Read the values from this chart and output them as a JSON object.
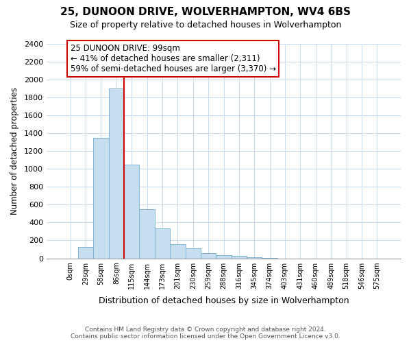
{
  "title": "25, DUNOON DRIVE, WOLVERHAMPTON, WV4 6BS",
  "subtitle": "Size of property relative to detached houses in Wolverhampton",
  "xlabel": "Distribution of detached houses by size in Wolverhampton",
  "ylabel": "Number of detached properties",
  "bin_labels": [
    "0sqm",
    "29sqm",
    "58sqm",
    "86sqm",
    "115sqm",
    "144sqm",
    "173sqm",
    "201sqm",
    "230sqm",
    "259sqm",
    "288sqm",
    "316sqm",
    "345sqm",
    "374sqm",
    "403sqm",
    "431sqm",
    "460sqm",
    "489sqm",
    "518sqm",
    "546sqm",
    "575sqm"
  ],
  "bar_values": [
    0,
    125,
    1345,
    1900,
    1050,
    550,
    335,
    155,
    110,
    60,
    35,
    25,
    10,
    5,
    0,
    0,
    0,
    0,
    0,
    0,
    0
  ],
  "bar_color": "#c5dff0",
  "bar_edge_color": "#7fb3d3",
  "annotation_title": "25 DUNOON DRIVE: 99sqm",
  "annotation_line1": "← 41% of detached houses are smaller (2,311)",
  "annotation_line2": "59% of semi-detached houses are larger (3,370) →",
  "annotation_box_edge": "#cc0000",
  "footer_line1": "Contains HM Land Registry data © Crown copyright and database right 2024.",
  "footer_line2": "Contains public sector information licensed under the Open Government Licence v3.0.",
  "ylim": [
    0,
    2400
  ],
  "yticks": [
    0,
    200,
    400,
    600,
    800,
    1000,
    1200,
    1400,
    1600,
    1800,
    2000,
    2200,
    2400
  ],
  "background_color": "#ffffff",
  "grid_color": "#ccddee"
}
